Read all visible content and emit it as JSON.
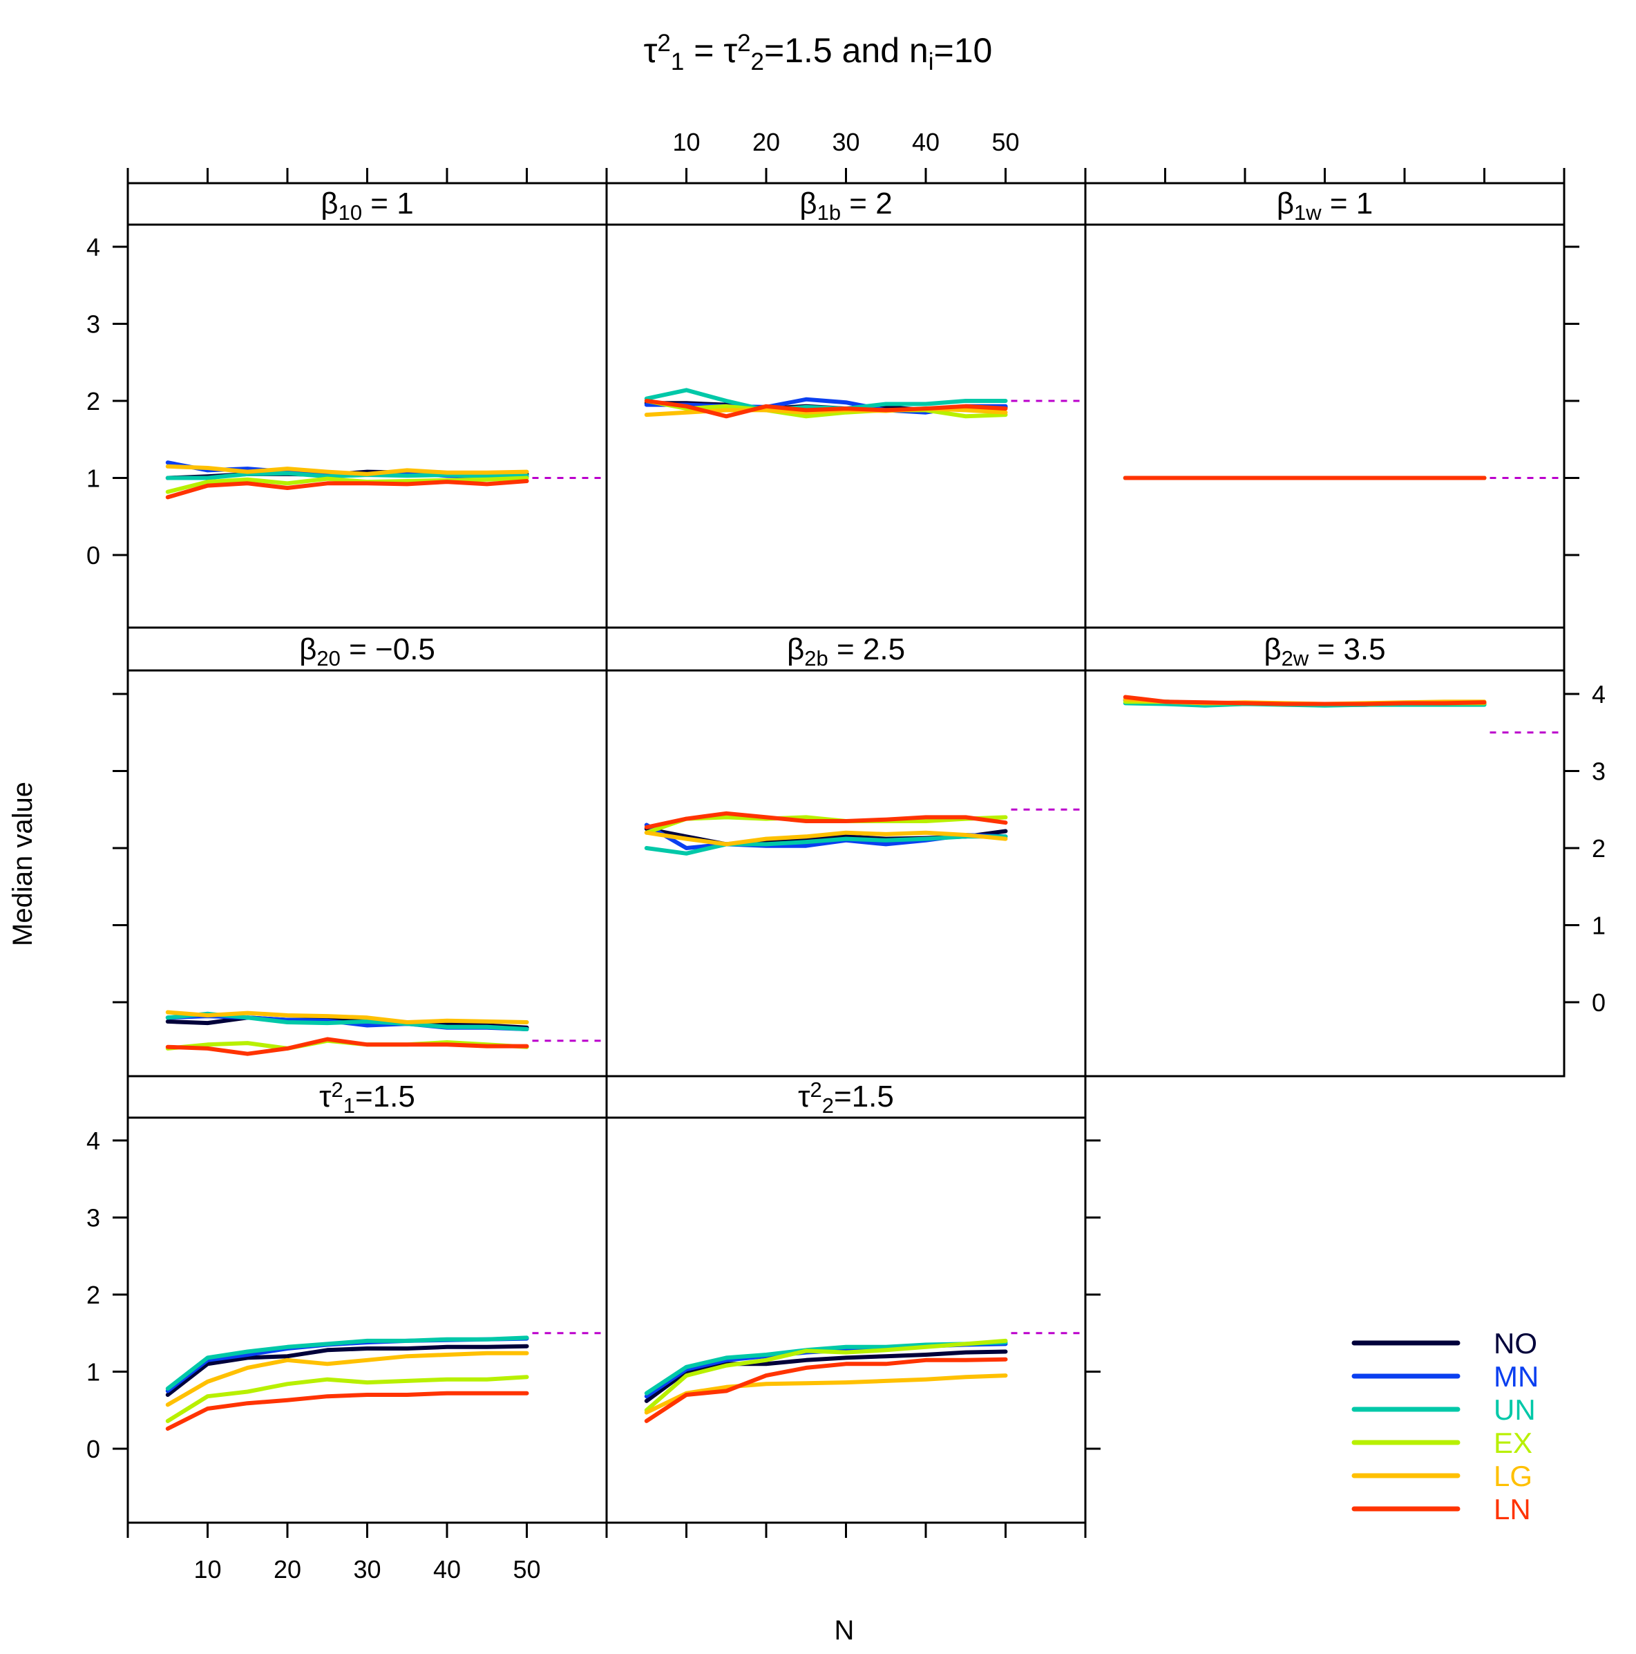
{
  "chart_data": {
    "type": "line",
    "layout": "lattice 3x3 multi-panel",
    "title": {
      "text": "τ₁² = τ₂²=1.5 and nᵢ=10",
      "parts": [
        {
          "t": "τ"
        },
        {
          "t": "2",
          "s": "sup"
        },
        {
          "t": "1",
          "s": "sub"
        },
        {
          "t": " = τ"
        },
        {
          "t": "2",
          "s": "sup"
        },
        {
          "t": "2",
          "s": "sub"
        },
        {
          "t": "=1.5 and n"
        },
        {
          "t": "i",
          "s": "sub"
        },
        {
          "t": "=10"
        }
      ]
    },
    "xlabel": "N",
    "ylabel": "Median value",
    "x": [
      5,
      10,
      15,
      20,
      25,
      30,
      35,
      40,
      45,
      50
    ],
    "xlim": [
      0,
      60
    ],
    "ylim": [
      -1,
      4.3
    ],
    "x_ticks": [
      10,
      20,
      30,
      40,
      50
    ],
    "y_ticks": [
      0,
      1,
      2,
      3,
      4
    ],
    "reference_line_style": "dashed",
    "reference_color": "#bb00cc",
    "legend": {
      "position": "bottom-right",
      "entries": [
        {
          "name": "NO",
          "color": "#00003a"
        },
        {
          "name": "MN",
          "color": "#0a3ff0"
        },
        {
          "name": "UN",
          "color": "#00c8a8"
        },
        {
          "name": "EX",
          "color": "#b8f000"
        },
        {
          "name": "LG",
          "color": "#ffc000"
        },
        {
          "name": "LN",
          "color": "#ff3300"
        }
      ]
    },
    "panels": [
      {
        "id": "b10",
        "row": 0,
        "col": 0,
        "strip": {
          "parts": [
            {
              "t": "β"
            },
            {
              "t": "10",
              "s": "sub"
            },
            {
              "t": " = 1"
            }
          ]
        },
        "true_value": 1,
        "series": [
          {
            "name": "NO",
            "values": [
              1.0,
              1.02,
              1.05,
              1.05,
              1.04,
              1.08,
              1.07,
              1.06,
              1.05,
              1.05
            ]
          },
          {
            "name": "MN",
            "values": [
              1.2,
              1.1,
              1.12,
              1.08,
              1.05,
              1.04,
              1.06,
              1.03,
              1.02,
              1.02
            ]
          },
          {
            "name": "UN",
            "values": [
              1.0,
              1.0,
              1.05,
              1.06,
              1.02,
              1.04,
              1.03,
              1.04,
              1.02,
              1.03
            ]
          },
          {
            "name": "EX",
            "values": [
              0.82,
              0.95,
              0.98,
              0.93,
              0.99,
              0.95,
              0.96,
              0.97,
              0.98,
              1.0
            ]
          },
          {
            "name": "LG",
            "values": [
              1.15,
              1.13,
              1.08,
              1.12,
              1.08,
              1.05,
              1.1,
              1.07,
              1.07,
              1.08
            ]
          },
          {
            "name": "LN",
            "values": [
              0.75,
              0.9,
              0.93,
              0.87,
              0.93,
              0.93,
              0.92,
              0.95,
              0.92,
              0.96
            ]
          }
        ]
      },
      {
        "id": "b1b",
        "row": 0,
        "col": 1,
        "strip": {
          "parts": [
            {
              "t": "β"
            },
            {
              "t": "1b",
              "s": "sub"
            },
            {
              "t": " = 2"
            }
          ]
        },
        "true_value": 2,
        "series": [
          {
            "name": "NO",
            "values": [
              1.97,
              1.97,
              1.95,
              1.9,
              1.93,
              1.9,
              1.92,
              1.88,
              1.9,
              1.92
            ]
          },
          {
            "name": "MN",
            "values": [
              1.95,
              1.95,
              1.93,
              1.92,
              2.02,
              1.98,
              1.88,
              1.85,
              1.93,
              1.93
            ]
          },
          {
            "name": "UN",
            "values": [
              2.03,
              2.14,
              2.0,
              1.88,
              1.92,
              1.9,
              1.96,
              1.96,
              2.0,
              2.0
            ]
          },
          {
            "name": "EX",
            "values": [
              2.0,
              1.9,
              1.93,
              1.88,
              1.8,
              1.85,
              1.88,
              1.88,
              1.8,
              1.82
            ]
          },
          {
            "name": "LG",
            "values": [
              1.82,
              1.85,
              1.88,
              1.88,
              1.85,
              1.88,
              1.87,
              1.9,
              1.88,
              1.85
            ]
          },
          {
            "name": "LN",
            "values": [
              2.0,
              1.93,
              1.8,
              1.93,
              1.88,
              1.9,
              1.88,
              1.9,
              1.93,
              1.9
            ]
          }
        ]
      },
      {
        "id": "b1w",
        "row": 0,
        "col": 2,
        "strip": {
          "parts": [
            {
              "t": "β"
            },
            {
              "t": "1w",
              "s": "sub"
            },
            {
              "t": " = 1"
            }
          ]
        },
        "true_value": 1,
        "series": [
          {
            "name": "NO",
            "values": [
              1.0,
              1.0,
              1.0,
              1.0,
              1.0,
              1.0,
              1.0,
              1.0,
              1.0,
              1.0
            ]
          },
          {
            "name": "MN",
            "values": [
              1.0,
              1.0,
              1.0,
              1.0,
              1.0,
              1.0,
              1.0,
              1.0,
              1.0,
              1.0
            ]
          },
          {
            "name": "UN",
            "values": [
              1.0,
              1.0,
              1.0,
              1.0,
              1.0,
              1.0,
              1.0,
              1.0,
              1.0,
              1.0
            ]
          },
          {
            "name": "EX",
            "values": [
              1.0,
              1.0,
              1.0,
              1.0,
              1.0,
              1.0,
              1.0,
              1.0,
              1.0,
              1.0
            ]
          },
          {
            "name": "LG",
            "values": [
              1.0,
              1.0,
              1.0,
              1.0,
              1.0,
              1.0,
              1.0,
              1.0,
              1.0,
              1.0
            ]
          },
          {
            "name": "LN",
            "values": [
              1.0,
              1.0,
              1.0,
              1.0,
              1.0,
              1.0,
              1.0,
              1.0,
              1.0,
              1.0
            ]
          }
        ]
      },
      {
        "id": "b20",
        "row": 1,
        "col": 0,
        "strip": {
          "parts": [
            {
              "t": "β"
            },
            {
              "t": "20",
              "s": "sub"
            },
            {
              "t": " = −0.5"
            }
          ]
        },
        "true_value": -0.5,
        "series": [
          {
            "name": "NO",
            "values": [
              -0.25,
              -0.27,
              -0.2,
              -0.23,
              -0.23,
              -0.25,
              -0.28,
              -0.28,
              -0.3,
              -0.33
            ]
          },
          {
            "name": "MN",
            "values": [
              -0.2,
              -0.18,
              -0.2,
              -0.23,
              -0.24,
              -0.3,
              -0.28,
              -0.33,
              -0.33,
              -0.35
            ]
          },
          {
            "name": "UN",
            "values": [
              -0.2,
              -0.15,
              -0.2,
              -0.26,
              -0.27,
              -0.25,
              -0.28,
              -0.32,
              -0.32,
              -0.35
            ]
          },
          {
            "name": "EX",
            "values": [
              -0.6,
              -0.55,
              -0.53,
              -0.6,
              -0.5,
              -0.55,
              -0.55,
              -0.52,
              -0.55,
              -0.58
            ]
          },
          {
            "name": "LG",
            "values": [
              -0.13,
              -0.17,
              -0.14,
              -0.17,
              -0.18,
              -0.2,
              -0.26,
              -0.24,
              -0.25,
              -0.26
            ]
          },
          {
            "name": "LN",
            "values": [
              -0.58,
              -0.6,
              -0.67,
              -0.6,
              -0.48,
              -0.55,
              -0.55,
              -0.55,
              -0.57,
              -0.57
            ]
          }
        ]
      },
      {
        "id": "b2b",
        "row": 1,
        "col": 1,
        "strip": {
          "parts": [
            {
              "t": "β"
            },
            {
              "t": "2b",
              "s": "sub"
            },
            {
              "t": " = 2.5"
            }
          ]
        },
        "true_value": 2.5,
        "series": [
          {
            "name": "NO",
            "values": [
              2.25,
              2.15,
              2.05,
              2.1,
              2.1,
              2.15,
              2.12,
              2.13,
              2.15,
              2.22
            ]
          },
          {
            "name": "MN",
            "values": [
              2.3,
              2.0,
              2.05,
              2.03,
              2.03,
              2.1,
              2.05,
              2.1,
              2.17,
              2.15
            ]
          },
          {
            "name": "UN",
            "values": [
              2.0,
              1.93,
              2.05,
              2.05,
              2.08,
              2.12,
              2.1,
              2.12,
              2.15,
              2.15
            ]
          },
          {
            "name": "EX",
            "values": [
              2.2,
              2.38,
              2.4,
              2.38,
              2.4,
              2.35,
              2.35,
              2.35,
              2.38,
              2.4
            ]
          },
          {
            "name": "LG",
            "values": [
              2.2,
              2.12,
              2.05,
              2.12,
              2.15,
              2.2,
              2.18,
              2.2,
              2.17,
              2.12
            ]
          },
          {
            "name": "LN",
            "values": [
              2.27,
              2.38,
              2.45,
              2.4,
              2.35,
              2.35,
              2.37,
              2.4,
              2.4,
              2.33
            ]
          }
        ]
      },
      {
        "id": "b2w",
        "row": 1,
        "col": 2,
        "strip": {
          "parts": [
            {
              "t": "β"
            },
            {
              "t": "2w",
              "s": "sub"
            },
            {
              "t": " = 3.5"
            }
          ]
        },
        "true_value": 3.5,
        "series": [
          {
            "name": "NO",
            "values": [
              3.92,
              3.9,
              3.88,
              3.88,
              3.87,
              3.86,
              3.86,
              3.87,
              3.87,
              3.87
            ]
          },
          {
            "name": "MN",
            "values": [
              3.92,
              3.9,
              3.88,
              3.88,
              3.87,
              3.86,
              3.86,
              3.87,
              3.88,
              3.88
            ]
          },
          {
            "name": "UN",
            "values": [
              3.88,
              3.87,
              3.85,
              3.87,
              3.86,
              3.85,
              3.86,
              3.86,
              3.86,
              3.86
            ]
          },
          {
            "name": "EX",
            "values": [
              3.9,
              3.9,
              3.88,
              3.88,
              3.87,
              3.87,
              3.87,
              3.88,
              3.88,
              3.88
            ]
          },
          {
            "name": "LG",
            "values": [
              3.93,
              3.9,
              3.88,
              3.89,
              3.88,
              3.87,
              3.88,
              3.89,
              3.9,
              3.9
            ]
          },
          {
            "name": "LN",
            "values": [
              3.96,
              3.9,
              3.89,
              3.88,
              3.87,
              3.87,
              3.87,
              3.88,
              3.88,
              3.89
            ]
          }
        ]
      },
      {
        "id": "t1",
        "row": 2,
        "col": 0,
        "strip": {
          "parts": [
            {
              "t": "τ"
            },
            {
              "t": "2",
              "s": "sup"
            },
            {
              "t": "1",
              "s": "sub"
            },
            {
              "t": "=1.5"
            }
          ]
        },
        "true_value": 1.5,
        "series": [
          {
            "name": "NO",
            "values": [
              0.7,
              1.1,
              1.18,
              1.2,
              1.28,
              1.3,
              1.3,
              1.32,
              1.32,
              1.33
            ]
          },
          {
            "name": "MN",
            "values": [
              0.75,
              1.15,
              1.22,
              1.3,
              1.35,
              1.38,
              1.4,
              1.41,
              1.42,
              1.43
            ]
          },
          {
            "name": "UN",
            "values": [
              0.78,
              1.18,
              1.26,
              1.32,
              1.36,
              1.4,
              1.4,
              1.42,
              1.42,
              1.44
            ]
          },
          {
            "name": "EX",
            "values": [
              0.36,
              0.68,
              0.74,
              0.84,
              0.9,
              0.86,
              0.88,
              0.9,
              0.9,
              0.93
            ]
          },
          {
            "name": "LG",
            "values": [
              0.57,
              0.87,
              1.05,
              1.15,
              1.1,
              1.15,
              1.2,
              1.22,
              1.24,
              1.24
            ]
          },
          {
            "name": "LN",
            "values": [
              0.26,
              0.52,
              0.59,
              0.63,
              0.68,
              0.7,
              0.7,
              0.72,
              0.72,
              0.72
            ]
          }
        ]
      },
      {
        "id": "t2",
        "row": 2,
        "col": 1,
        "strip": {
          "parts": [
            {
              "t": "τ"
            },
            {
              "t": "2",
              "s": "sup"
            },
            {
              "t": "2",
              "s": "sub"
            },
            {
              "t": "=1.5"
            }
          ]
        },
        "true_value": 1.5,
        "series": [
          {
            "name": "NO",
            "values": [
              0.62,
              1.0,
              1.1,
              1.1,
              1.15,
              1.18,
              1.2,
              1.22,
              1.25,
              1.26
            ]
          },
          {
            "name": "MN",
            "values": [
              0.68,
              1.03,
              1.15,
              1.2,
              1.25,
              1.28,
              1.3,
              1.33,
              1.35,
              1.36
            ]
          },
          {
            "name": "UN",
            "values": [
              0.72,
              1.06,
              1.18,
              1.22,
              1.28,
              1.32,
              1.32,
              1.35,
              1.36,
              1.38
            ]
          },
          {
            "name": "EX",
            "values": [
              0.5,
              0.95,
              1.08,
              1.15,
              1.27,
              1.25,
              1.28,
              1.32,
              1.36,
              1.4
            ]
          },
          {
            "name": "LG",
            "values": [
              0.47,
              0.72,
              0.8,
              0.84,
              0.85,
              0.86,
              0.88,
              0.9,
              0.93,
              0.95
            ]
          },
          {
            "name": "LN",
            "values": [
              0.36,
              0.7,
              0.75,
              0.95,
              1.05,
              1.1,
              1.1,
              1.15,
              1.15,
              1.16
            ]
          }
        ]
      }
    ]
  }
}
